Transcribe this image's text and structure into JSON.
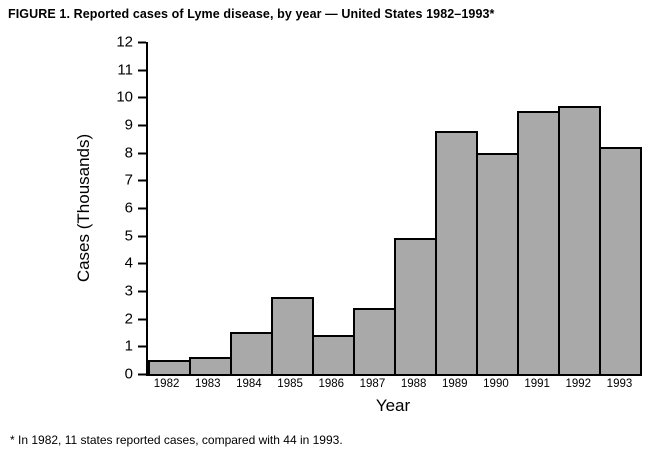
{
  "figure": {
    "title": "FIGURE 1. Reported cases of Lyme disease, by year — United States 1982–1993*",
    "footnote": "* In 1982, 11 states reported cases, compared with 44 in 1993."
  },
  "chart_data": {
    "type": "bar",
    "title": "Reported cases of Lyme disease, by year — United States 1982–1993",
    "categories": [
      "1982",
      "1983",
      "1984",
      "1985",
      "1986",
      "1987",
      "1988",
      "1989",
      "1990",
      "1991",
      "1992",
      "1993"
    ],
    "values": [
      0.5,
      0.6,
      1.5,
      2.8,
      1.4,
      2.4,
      4.9,
      8.8,
      8.0,
      9.5,
      9.7,
      8.2
    ],
    "xlabel": "Year",
    "ylabel": "Cases (Thousands)",
    "ylim": [
      0,
      12
    ],
    "yticks": [
      0,
      1,
      2,
      3,
      4,
      5,
      6,
      7,
      8,
      9,
      10,
      11,
      12
    ],
    "grid": false,
    "legend": "none",
    "bar_fill": "#a9a9a9",
    "bar_border": "#000000"
  }
}
